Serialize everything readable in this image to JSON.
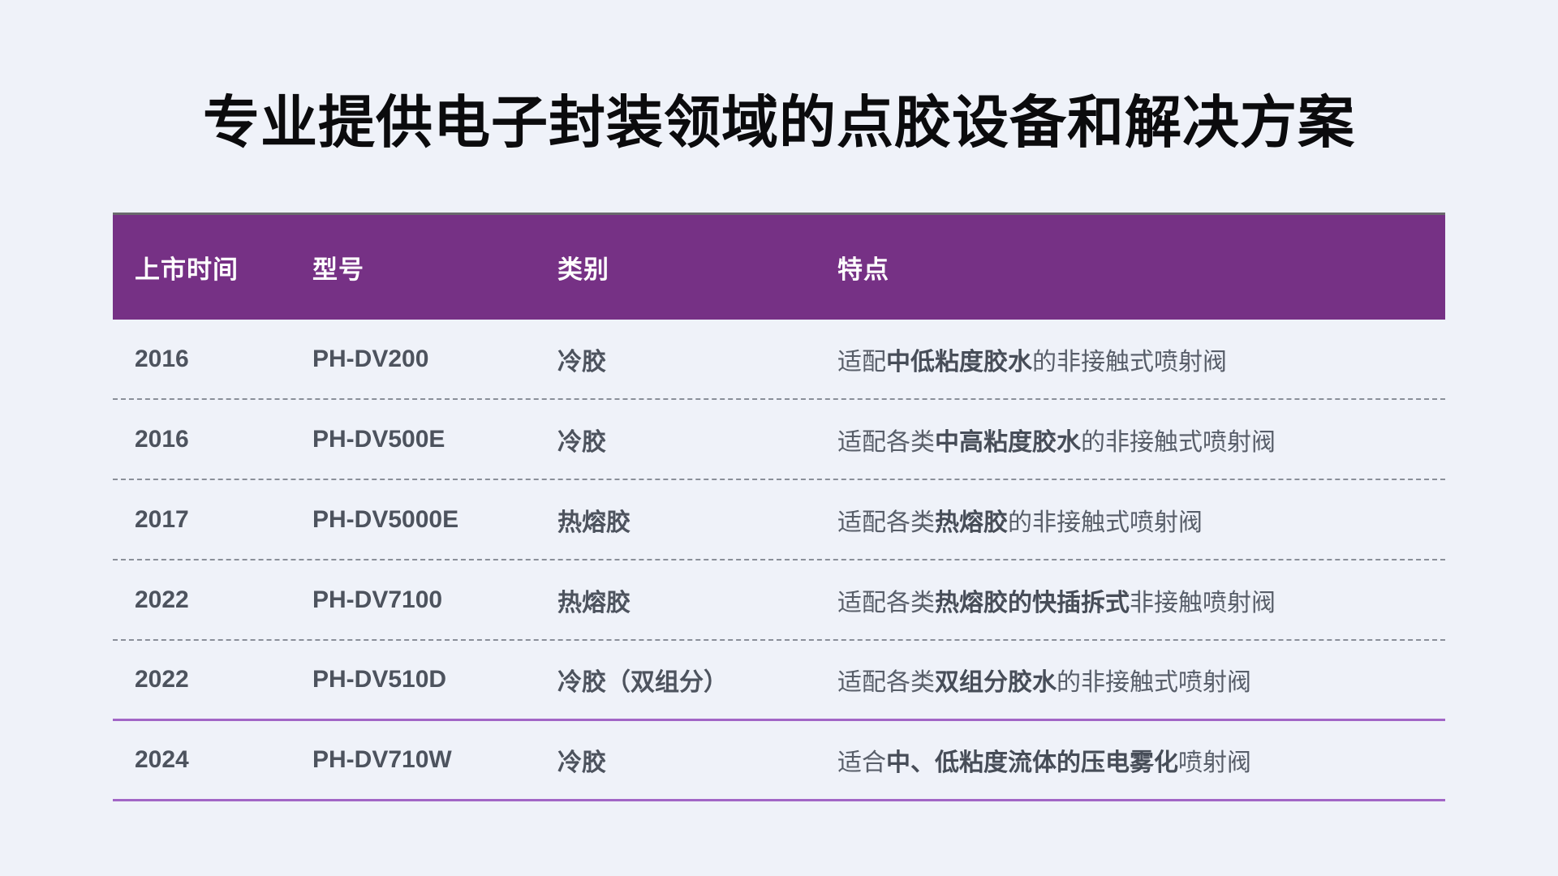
{
  "page": {
    "title": "专业提供电子封装领域的点胶设备和解决方案"
  },
  "colors": {
    "page_bg": "#eff2f9",
    "header_bg": "#763185",
    "header_text": "#ffffff",
    "accent_line": "#a266c6",
    "dash_line": "#8a8f99"
  },
  "table": {
    "columns": [
      "上市时间",
      "型号",
      "类别",
      "特点"
    ],
    "rows": [
      {
        "year": "2016",
        "model": "PH-DV200",
        "category": "冷胶",
        "feature": [
          {
            "text": "适配",
            "bold": false
          },
          {
            "text": "中低粘度胶水",
            "bold": true
          },
          {
            "text": "的非接触式喷射阀",
            "bold": false
          }
        ]
      },
      {
        "year": "2016",
        "model": "PH-DV500E",
        "category": "冷胶",
        "feature": [
          {
            "text": "适配各类",
            "bold": false
          },
          {
            "text": "中高粘度胶水",
            "bold": true
          },
          {
            "text": "的非接触式喷射阀",
            "bold": false
          }
        ]
      },
      {
        "year": "2017",
        "model": "PH-DV5000E",
        "category": "热熔胶",
        "feature": [
          {
            "text": "适配各类",
            "bold": false
          },
          {
            "text": "热熔胶",
            "bold": true
          },
          {
            "text": "的非接触式喷射阀",
            "bold": false
          }
        ]
      },
      {
        "year": "2022",
        "model": "PH-DV7100",
        "category": "热熔胶",
        "feature": [
          {
            "text": "适配各类",
            "bold": false
          },
          {
            "text": "热熔胶的快插拆式",
            "bold": true
          },
          {
            "text": "非接触喷射阀",
            "bold": false
          }
        ]
      },
      {
        "year": "2022",
        "model": "PH-DV510D",
        "category": "冷胶（双组分）",
        "feature": [
          {
            "text": "适配各类",
            "bold": false
          },
          {
            "text": "双组分胶水",
            "bold": true
          },
          {
            "text": "的非接触式喷射阀",
            "bold": false
          }
        ]
      },
      {
        "year": "2024",
        "model": "PH-DV710W",
        "category": "冷胶",
        "feature": [
          {
            "text": "适合",
            "bold": false
          },
          {
            "text": "中、低粘度流体的压电雾化",
            "bold": true
          },
          {
            "text": "喷射阀",
            "bold": false
          }
        ]
      }
    ]
  },
  "chart_data": {
    "type": "table",
    "title": "专业提供电子封装领域的点胶设备和解决方案",
    "columns": [
      "上市时间",
      "型号",
      "类别",
      "特点"
    ],
    "rows": [
      [
        "2016",
        "PH-DV200",
        "冷胶",
        "适配中低粘度胶水的非接触式喷射阀"
      ],
      [
        "2016",
        "PH-DV500E",
        "冷胶",
        "适配各类中高粘度胶水的非接触式喷射阀"
      ],
      [
        "2017",
        "PH-DV5000E",
        "热熔胶",
        "适配各类热熔胶的非接触式喷射阀"
      ],
      [
        "2022",
        "PH-DV7100",
        "热熔胶",
        "适配各类热熔胶的快插拆式非接触喷射阀"
      ],
      [
        "2022",
        "PH-DV510D",
        "冷胶（双组分）",
        "适配各类双组分胶水的非接触式喷射阀"
      ],
      [
        "2024",
        "PH-DV710W",
        "冷胶",
        "适合中、低粘度流体的压电雾化喷射阀"
      ]
    ],
    "layout": {
      "header_bg": "#763185",
      "grid": "dashed-row-separators",
      "legend": "none"
    }
  }
}
